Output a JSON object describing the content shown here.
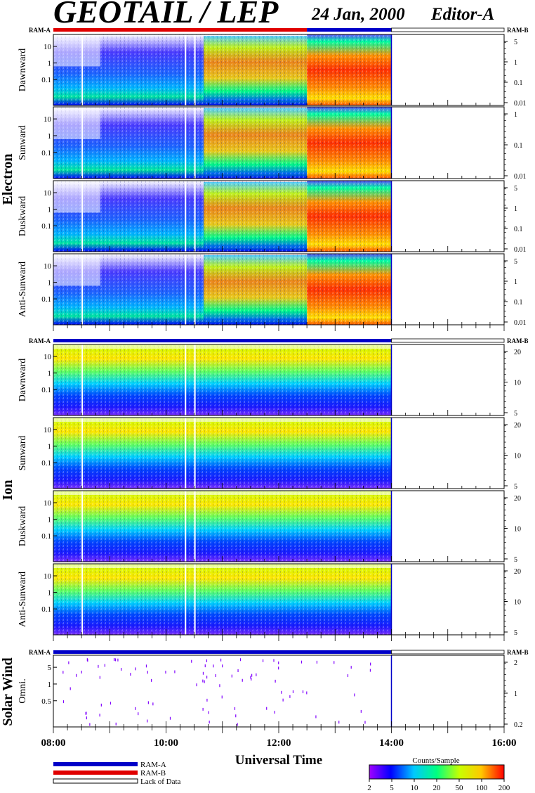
{
  "header": {
    "title": "GEOTAIL / LEP",
    "date": "24 Jan, 2000",
    "editor": "Editor-A"
  },
  "colors": {
    "ram_a": "#0000c8",
    "ram_b": "#e00000",
    "lack_of_data": "#ffffff"
  },
  "chart_data": {
    "type": "heatmap",
    "xlabel": "Universal Time",
    "x_range": [
      "08:00",
      "16:00"
    ],
    "x_ticks": [
      "08:00",
      "10:00",
      "12:00",
      "14:00",
      "16:00"
    ],
    "data_end": "14:00",
    "groups": [
      {
        "name": "Electron",
        "mode_bar_left": "RAM-A",
        "mode_bar_right": "RAM-B",
        "mode_bar_segments": [
          {
            "from": "08:00",
            "to": "12:30",
            "mode": "RAM-B"
          },
          {
            "from": "12:30",
            "to": "14:00",
            "mode": "RAM-A"
          },
          {
            "from": "14:00",
            "to": "16:00",
            "mode": "Lack of Data"
          }
        ],
        "panels": [
          {
            "name": "Dawnward",
            "y_ticks": [
              "10",
              "1",
              "0.1"
            ],
            "right_ticks": [
              "5",
              "1",
              "0.1",
              "0.01"
            ]
          },
          {
            "name": "Sunward",
            "y_ticks": [
              "10",
              "1",
              "0.1"
            ],
            "right_ticks": [
              "1",
              "0.1",
              "0.01"
            ]
          },
          {
            "name": "Duskward",
            "y_ticks": [
              "10",
              "1",
              "0.1"
            ],
            "right_ticks": [
              "5",
              "1",
              "0.1",
              "0.01"
            ]
          },
          {
            "name": "Anti-Sunward",
            "y_ticks": [
              "10",
              "1",
              "0.1"
            ],
            "right_ticks": [
              "5",
              "1",
              "0.1",
              "0.01"
            ]
          }
        ]
      },
      {
        "name": "Ion",
        "mode_bar_left": "RAM-A",
        "mode_bar_right": "RAM-B",
        "mode_bar_segments": [
          {
            "from": "08:00",
            "to": "14:00",
            "mode": "RAM-A"
          },
          {
            "from": "14:00",
            "to": "16:00",
            "mode": "Lack of Data"
          }
        ],
        "panels": [
          {
            "name": "Dawnward",
            "y_ticks": [
              "10",
              "1",
              "0.1"
            ],
            "right_ticks": [
              "20",
              "10",
              "5"
            ]
          },
          {
            "name": "Sunward",
            "y_ticks": [
              "10",
              "1",
              "0.1"
            ],
            "right_ticks": [
              "20",
              "10",
              "5"
            ]
          },
          {
            "name": "Duskward",
            "y_ticks": [
              "10",
              "1",
              "0.1"
            ],
            "right_ticks": [
              "20",
              "10",
              "5"
            ]
          },
          {
            "name": "Anti-Sunward",
            "y_ticks": [
              "10",
              "1",
              "0.1"
            ],
            "right_ticks": [
              "20",
              "10",
              "5"
            ]
          }
        ]
      },
      {
        "name": "Solar Wind",
        "mode_bar_left": "RAM-A",
        "mode_bar_right": "RAM-B",
        "mode_bar_segments": [
          {
            "from": "08:00",
            "to": "14:00",
            "mode": "RAM-A"
          },
          {
            "from": "14:00",
            "to": "16:00",
            "mode": "Lack of Data"
          }
        ],
        "panels": [
          {
            "name": "Omni.",
            "y_ticks": [
              "5",
              "1",
              "0.5"
            ],
            "right_ticks": [
              "2",
              "1",
              "0.2"
            ]
          }
        ]
      }
    ],
    "legend": {
      "items": [
        "RAM-A",
        "RAM-B",
        "Lack of Data"
      ]
    },
    "colorbar": {
      "label": "Counts/Sample",
      "ticks": [
        "2",
        "5",
        "10",
        "20",
        "50",
        "100",
        "200"
      ],
      "colors": [
        "#a000ff",
        "#0000ff",
        "#00c8ff",
        "#00ff80",
        "#c8ff00",
        "#ffc800",
        "#ff0000"
      ]
    }
  }
}
